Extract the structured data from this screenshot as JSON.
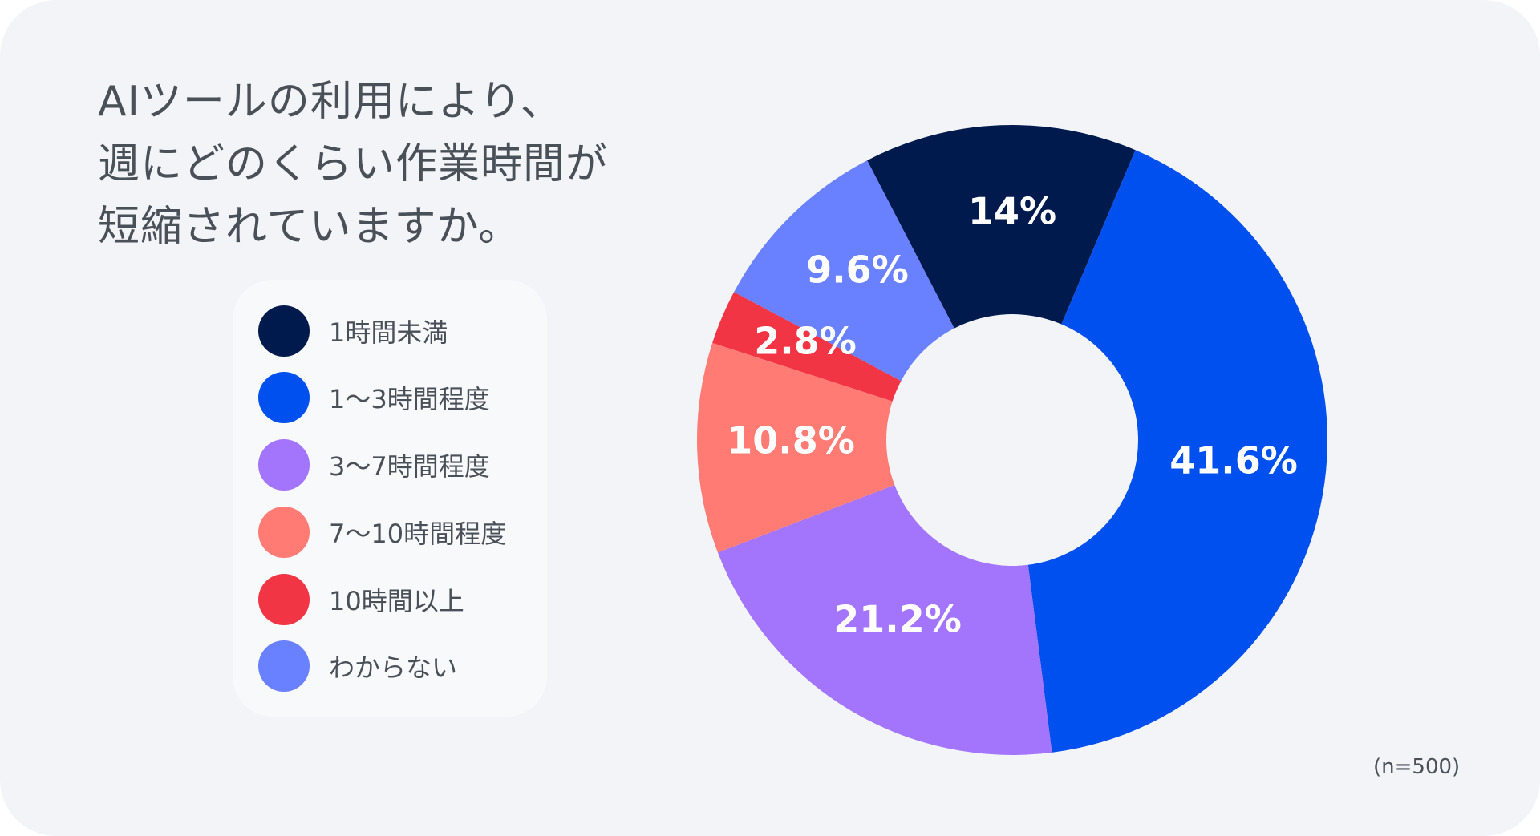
{
  "title": "AIツールの利用により、\n週にどのくらい作業時間が\n短縮されていますか。",
  "note": "(n=500)",
  "chart_data": {
    "type": "pie",
    "donut": true,
    "start": "top, counter-clockwise offset ~27°, proceeding clockwise",
    "categories": [
      "1時間未満",
      "1〜3時間程度",
      "3〜7時間程度",
      "7〜10時間程度",
      "10時間以上",
      "わからない"
    ],
    "values": [
      14,
      41.6,
      21.2,
      10.8,
      2.8,
      9.6
    ],
    "labels": [
      "14%",
      "41.6%",
      "21.2%",
      "10.8%",
      "2.8%",
      "9.6%"
    ],
    "colors": [
      "#001a4d",
      "#0050f0",
      "#a275fc",
      "#ff7b74",
      "#f23545",
      "#6980ff"
    ],
    "legend_position": "left"
  }
}
